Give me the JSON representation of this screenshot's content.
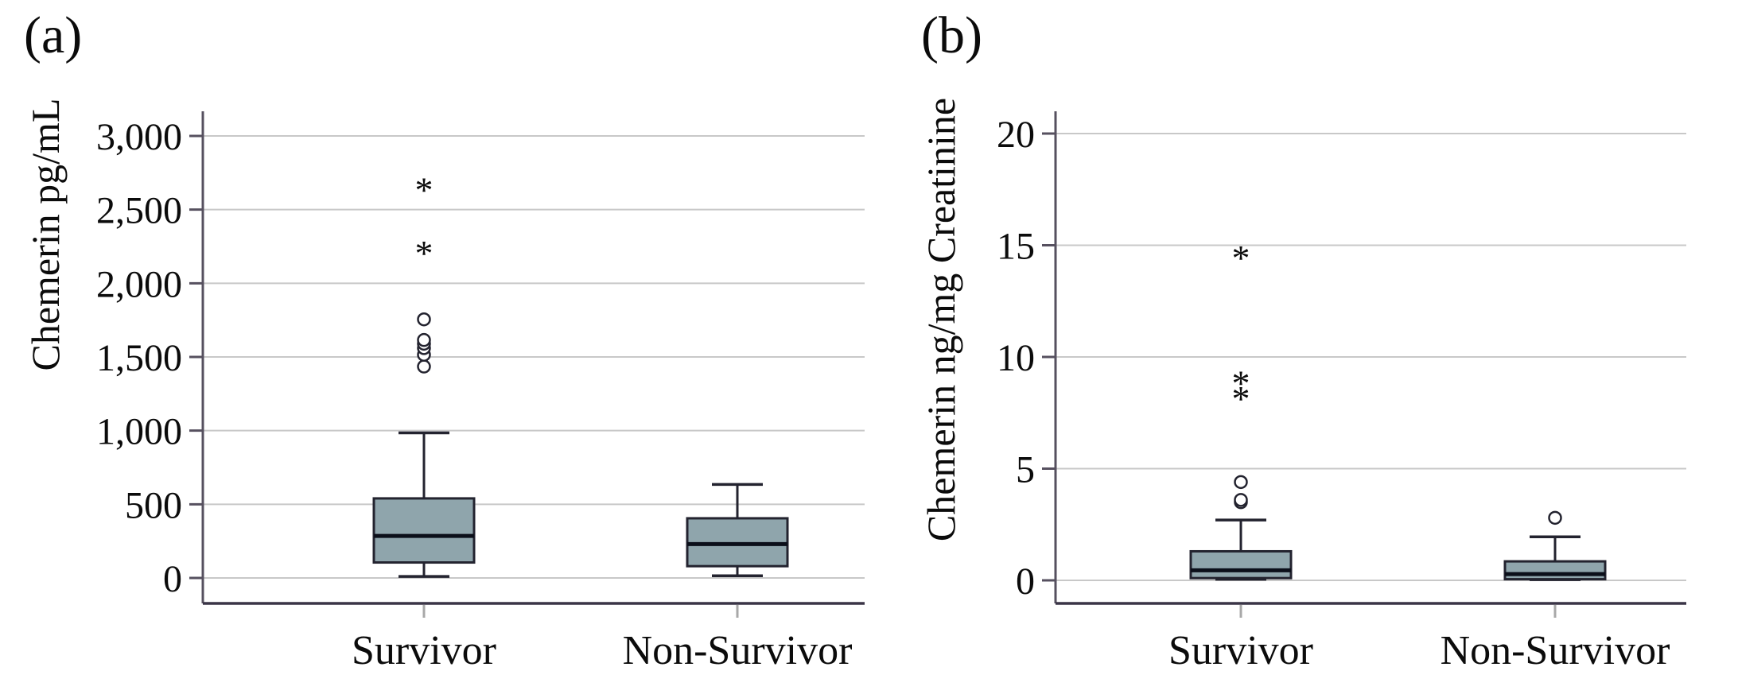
{
  "figure": {
    "background": "#ffffff",
    "colors": {
      "box_fill": "#8FA5AC",
      "box_stroke": "#23232F",
      "median": "#0B0F1A",
      "gridline": "#C8C8C8",
      "axis": "#56505F",
      "frame_bottom": "#3A3547",
      "x_tick": "#A8A8A8",
      "text": "#0B0B0B",
      "outlier_stroke": "#23232F",
      "outlier_fill": "#FFFFFF"
    }
  },
  "chart_data": [
    {
      "type": "boxplot",
      "panel_label": "(a)",
      "ylabel": "Chemerin pg/mL",
      "xlabel": "",
      "categories": [
        "Survivor",
        "Non-Survivor"
      ],
      "ylim": [
        0,
        3000
      ],
      "yticks": [
        0,
        500,
        1000,
        1500,
        2000,
        2500,
        3000
      ],
      "ytick_labels": [
        "0",
        "500",
        "1,000",
        "1,500",
        "2,000",
        "2,500",
        "3,000"
      ],
      "grid": true,
      "legend": "none",
      "boxes": [
        {
          "category": "Survivor",
          "whisker_low": 10,
          "q1": 105,
          "median": 285,
          "q3": 540,
          "whisker_high": 985,
          "outliers_mild": [
            1435,
            1515,
            1560,
            1590,
            1615,
            1755
          ],
          "outliers_extreme": [
            2260,
            2690
          ]
        },
        {
          "category": "Non-Survivor",
          "whisker_low": 15,
          "q1": 80,
          "median": 230,
          "q3": 405,
          "whisker_high": 635,
          "outliers_mild": [],
          "outliers_extreme": []
        }
      ]
    },
    {
      "type": "boxplot",
      "panel_label": "(b)",
      "ylabel": "Chemerin ng/mg Creatinine",
      "xlabel": "",
      "categories": [
        "Survivor",
        "Non-Survivor"
      ],
      "ylim": [
        0,
        20
      ],
      "yticks": [
        0,
        5,
        10,
        15,
        20
      ],
      "ytick_labels": [
        "0",
        "5",
        "10",
        "15",
        "20"
      ],
      "grid": true,
      "legend": "none",
      "boxes": [
        {
          "category": "Survivor",
          "whisker_low": 0.05,
          "q1": 0.1,
          "median": 0.45,
          "q3": 1.3,
          "whisker_high": 2.7,
          "outliers_mild": [
            3.5,
            3.6,
            4.4
          ],
          "outliers_extreme": [
            8.5,
            9.2,
            14.8
          ]
        },
        {
          "category": "Non-Survivor",
          "whisker_low": 0.03,
          "q1": 0.05,
          "median": 0.28,
          "q3": 0.85,
          "whisker_high": 1.95,
          "outliers_mild": [
            2.8
          ],
          "outliers_extreme": []
        }
      ]
    }
  ]
}
